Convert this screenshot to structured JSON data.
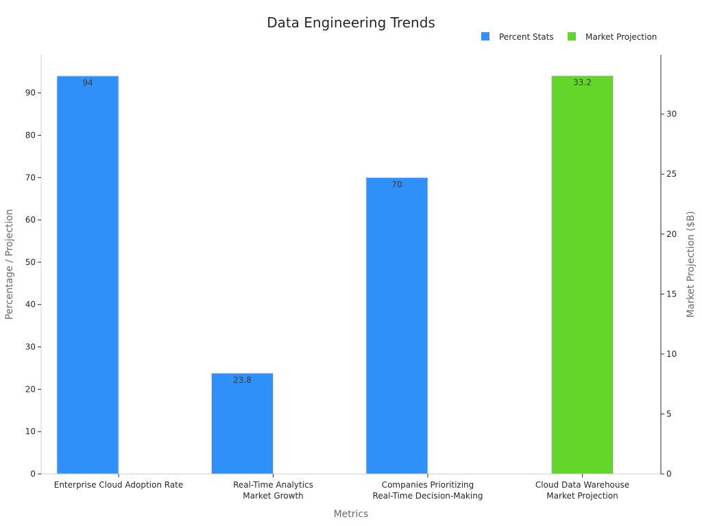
{
  "chart_data": {
    "type": "bar",
    "title": "Data Engineering Trends",
    "xlabel": "Metrics",
    "ylabel": "Percentage / Projection",
    "y2label": "Market Projection ($B)",
    "categories": [
      [
        "Enterprise Cloud Adoption Rate"
      ],
      [
        "Real-Time Analytics",
        "Market Growth"
      ],
      [
        "Companies Prioritizing",
        "Real-Time Decision-Making"
      ],
      [
        "Cloud Data Warehouse",
        "Market Projection"
      ]
    ],
    "series": [
      {
        "name": "Percent Stats",
        "axis": "left",
        "color": "#2e90f8",
        "values": [
          94,
          23.8,
          70,
          null
        ],
        "labels": [
          "94",
          "23.8",
          "70",
          ""
        ]
      },
      {
        "name": "Market Projection",
        "axis": "right",
        "color": "#63d62a",
        "values": [
          null,
          null,
          null,
          33.2
        ],
        "labels": [
          "",
          "",
          "",
          "33.2"
        ]
      }
    ],
    "ylim": [
      0,
      99
    ],
    "y2lim": [
      0,
      34.95
    ],
    "yticks": [
      0,
      10,
      20,
      30,
      40,
      50,
      60,
      70,
      80,
      90
    ],
    "y2ticks": [
      0,
      5,
      10,
      15,
      20,
      25,
      30
    ],
    "legend_position": "top-right",
    "grid": false
  }
}
